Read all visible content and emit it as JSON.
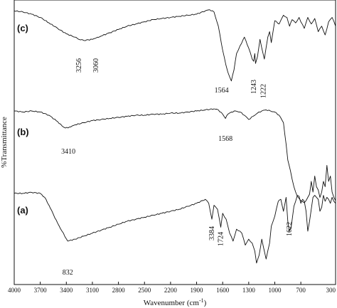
{
  "chart_data": {
    "type": "line",
    "xlabel": "Wavenumber (cm",
    "xlabel_sup": "-1",
    "xlabel_end": ")",
    "ylabel": "%Transmittance",
    "xlim": [
      4000,
      300
    ],
    "xticks": [
      "4000",
      "3700",
      "3400",
      "3100",
      "2800",
      "2500",
      "2200",
      "1900",
      "1600",
      "1300",
      "1000",
      "700",
      "300"
    ],
    "grid": false,
    "series": [
      {
        "name": "(c)",
        "x": [
          4000,
          3900,
          3800,
          3700,
          3600,
          3500,
          3400,
          3300,
          3256,
          3200,
          3100,
          3060,
          3000,
          2900,
          2800,
          2700,
          2600,
          2500,
          2400,
          2300,
          2200,
          2100,
          2000,
          1900,
          1800,
          1750,
          1700,
          1650,
          1600,
          1564,
          1540,
          1500,
          1470,
          1440,
          1400,
          1350,
          1300,
          1260,
          1243,
          1230,
          1222,
          1200,
          1170,
          1150,
          1120,
          1080,
          1060,
          1040,
          1000,
          950,
          900,
          860,
          830,
          800,
          760,
          720,
          700,
          660,
          620,
          580,
          540,
          500,
          460,
          420,
          380,
          340,
          300
        ],
        "y": [
          94,
          93,
          91,
          88,
          83,
          78,
          73,
          70,
          68,
          67,
          68,
          69,
          71,
          74,
          77,
          80,
          82,
          84,
          86,
          87,
          88,
          89,
          90,
          91,
          94,
          95,
          93,
          80,
          58,
          45,
          38,
          30,
          40,
          55,
          62,
          70,
          60,
          50,
          48,
          55,
          46,
          52,
          68,
          60,
          50,
          70,
          75,
          65,
          85,
          82,
          90,
          88,
          80,
          86,
          83,
          88,
          84,
          78,
          88,
          82,
          87,
          75,
          80,
          72,
          84,
          88,
          80
        ]
      },
      {
        "name": "(b)",
        "x": [
          4000,
          3900,
          3800,
          3700,
          3600,
          3500,
          3450,
          3410,
          3350,
          3300,
          3200,
          3100,
          3000,
          2900,
          2800,
          2700,
          2600,
          2500,
          2400,
          2300,
          2200,
          2100,
          2000,
          1900,
          1800,
          1700,
          1650,
          1600,
          1568,
          1540,
          1500,
          1450,
          1400,
          1350,
          1300,
          1250,
          1200,
          1150,
          1100,
          1050,
          1000,
          950,
          900,
          870,
          850,
          820,
          800,
          780,
          760,
          740,
          720,
          700,
          680,
          660,
          640,
          620,
          600,
          580,
          560,
          540,
          520,
          500,
          480,
          460,
          440,
          420,
          400,
          380,
          360,
          340,
          320,
          300
        ],
        "y": [
          96,
          95,
          96,
          95,
          92,
          86,
          82,
          80,
          81,
          83,
          85,
          87,
          88,
          89,
          90,
          91,
          92,
          92,
          93,
          93,
          94,
          94,
          95,
          96,
          97,
          98,
          97,
          93,
          89,
          93,
          95,
          96,
          95,
          92,
          88,
          91,
          94,
          96,
          97,
          96,
          95,
          92,
          85,
          65,
          50,
          40,
          32,
          25,
          20,
          16,
          14,
          12,
          11,
          10,
          12,
          15,
          18,
          30,
          20,
          35,
          25,
          22,
          15,
          20,
          30,
          25,
          45,
          30,
          35,
          20,
          15,
          12
        ]
      },
      {
        "name": "(a)",
        "x": [
          4000,
          3900,
          3800,
          3700,
          3650,
          3600,
          3550,
          3500,
          3450,
          3384,
          3300,
          3200,
          3100,
          3000,
          2900,
          2800,
          2700,
          2600,
          2500,
          2400,
          2300,
          2200,
          2100,
          2000,
          1900,
          1800,
          1760,
          1724,
          1700,
          1660,
          1622,
          1600,
          1560,
          1520,
          1480,
          1440,
          1400,
          1380,
          1340,
          1300,
          1260,
          1230,
          1210,
          1180,
          1150,
          1120,
          1100,
          1060,
          1040,
          1000,
          960,
          930,
          900,
          870,
          850,
          832,
          810,
          780,
          760,
          740,
          720,
          700,
          680,
          660,
          640,
          620,
          600,
          580,
          560,
          540,
          520,
          500,
          480,
          460,
          440,
          420,
          400,
          380,
          360,
          340,
          320,
          300
        ],
        "y": [
          88,
          88,
          89,
          88,
          84,
          76,
          67,
          58,
          50,
          40,
          42,
          45,
          48,
          51,
          54,
          57,
          60,
          62,
          64,
          66,
          68,
          70,
          72,
          75,
          78,
          82,
          78,
          62,
          76,
          72,
          54,
          68,
          62,
          48,
          40,
          52,
          50,
          48,
          36,
          42,
          38,
          30,
          18,
          26,
          42,
          30,
          22,
          38,
          55,
          65,
          80,
          82,
          70,
          84,
          60,
          50,
          55,
          75,
          80,
          86,
          85,
          78,
          82,
          80,
          70,
          50,
          60,
          72,
          84,
          86,
          84,
          82,
          70,
          74,
          86,
          80,
          84,
          82,
          78,
          84,
          80,
          78
        ]
      }
    ],
    "panel_labels": [
      "(c)",
      "(b)",
      "(a)"
    ],
    "annotations": {
      "c": [
        "3256",
        "3060",
        "1564",
        "1243",
        "1222"
      ],
      "b": [
        "3410",
        "1568"
      ],
      "a": [
        "3384",
        "1724",
        "1622",
        "832"
      ]
    }
  }
}
